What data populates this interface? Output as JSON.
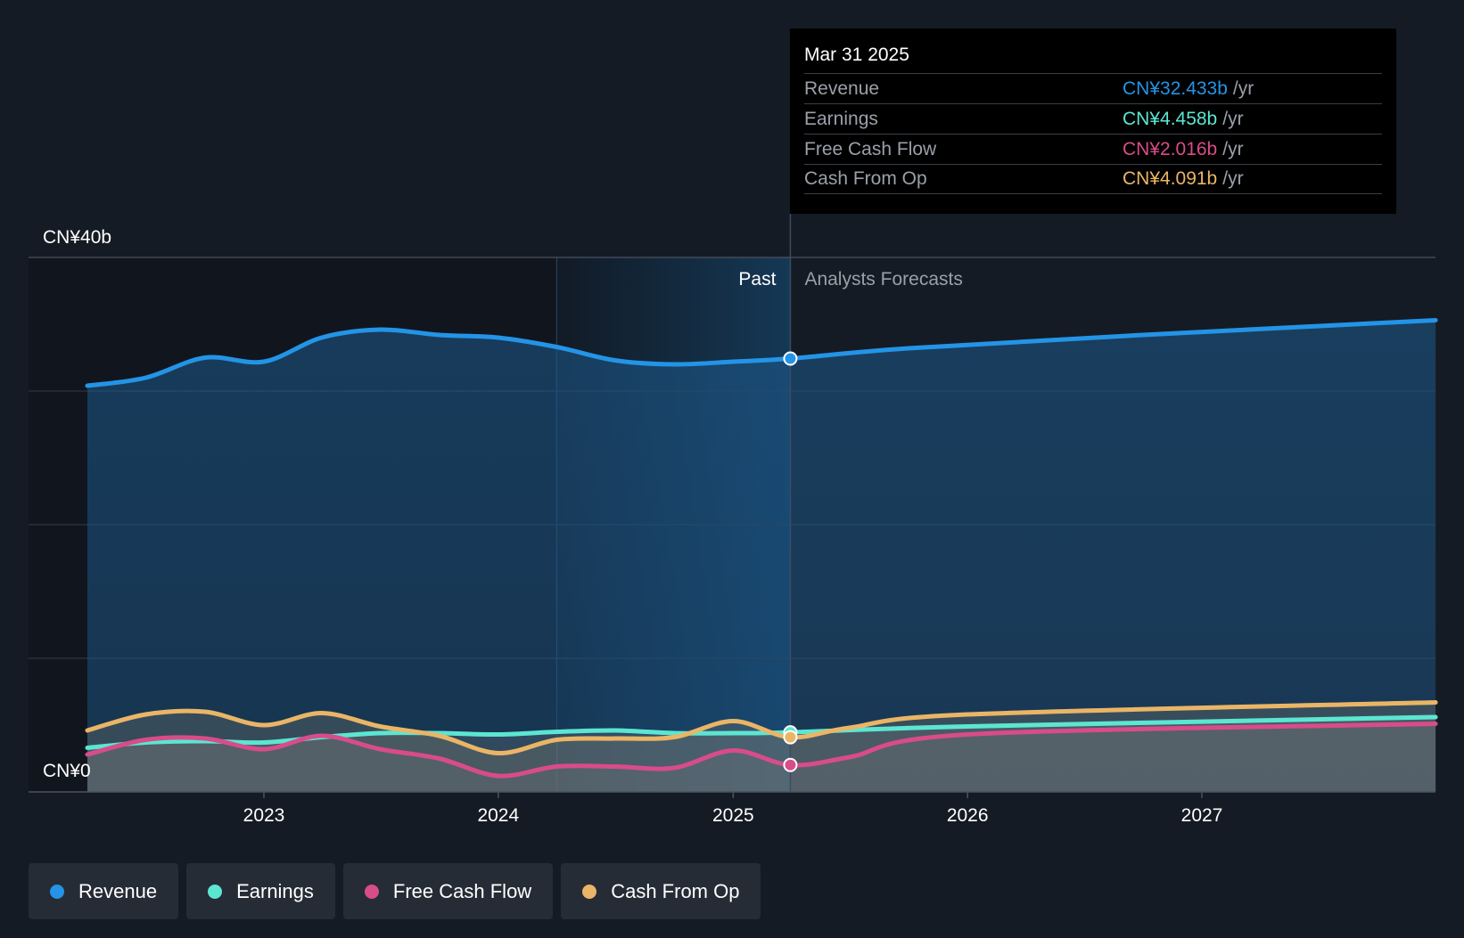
{
  "chart_data": {
    "type": "area",
    "x_domain": [
      "2022-04-01",
      "2027-12-31"
    ],
    "ylim": [
      0,
      40
    ],
    "y_unit": "CN¥ billions",
    "y_tick_labels": [
      {
        "value": 40,
        "label": "CN¥40b"
      },
      {
        "value": 0,
        "label": "CN¥0"
      }
    ],
    "x_tick_labels": [
      {
        "date": "2023-01-01",
        "label": "2023"
      },
      {
        "date": "2024-01-01",
        "label": "2024"
      },
      {
        "date": "2025-01-01",
        "label": "2025"
      },
      {
        "date": "2026-01-01",
        "label": "2026"
      },
      {
        "date": "2027-01-01",
        "label": "2027"
      }
    ],
    "gridlines_y": [
      10,
      20,
      30,
      40
    ],
    "highlight_band": [
      "2024-04-01",
      "2025-03-31"
    ],
    "past_forecast_split": "2025-03-31",
    "past_label": "Past",
    "forecast_label": "Analysts Forecasts",
    "series": [
      {
        "name": "Revenue",
        "color": "#2394e6",
        "fill": true,
        "points": [
          [
            "2022-04-01",
            30.4
          ],
          [
            "2022-07-01",
            31.0
          ],
          [
            "2022-10-01",
            32.5
          ],
          [
            "2023-01-01",
            32.2
          ],
          [
            "2023-04-01",
            34.0
          ],
          [
            "2023-07-01",
            34.6
          ],
          [
            "2023-10-01",
            34.2
          ],
          [
            "2024-01-01",
            34.0
          ],
          [
            "2024-04-01",
            33.3
          ],
          [
            "2024-07-01",
            32.3
          ],
          [
            "2024-10-01",
            32.0
          ],
          [
            "2025-01-01",
            32.2
          ],
          [
            "2025-03-31",
            32.433
          ],
          [
            "2025-10-01",
            33.2
          ],
          [
            "2026-10-01",
            34.2
          ],
          [
            "2027-12-31",
            35.3
          ]
        ]
      },
      {
        "name": "Earnings",
        "color": "#5ce6d2",
        "fill": true,
        "points": [
          [
            "2022-04-01",
            3.3
          ],
          [
            "2022-07-01",
            3.7
          ],
          [
            "2022-10-01",
            3.8
          ],
          [
            "2023-01-01",
            3.7
          ],
          [
            "2023-04-01",
            4.1
          ],
          [
            "2023-07-01",
            4.4
          ],
          [
            "2023-10-01",
            4.4
          ],
          [
            "2024-01-01",
            4.3
          ],
          [
            "2024-04-01",
            4.5
          ],
          [
            "2024-07-01",
            4.6
          ],
          [
            "2024-10-01",
            4.4
          ],
          [
            "2025-01-01",
            4.4
          ],
          [
            "2025-03-31",
            4.458
          ],
          [
            "2026-01-01",
            4.9
          ],
          [
            "2027-12-31",
            5.6
          ]
        ]
      },
      {
        "name": "Free Cash Flow",
        "color": "#d84c8a",
        "fill": true,
        "points": [
          [
            "2022-04-01",
            2.8
          ],
          [
            "2022-07-01",
            3.9
          ],
          [
            "2022-10-01",
            4.0
          ],
          [
            "2023-01-01",
            3.2
          ],
          [
            "2023-04-01",
            4.2
          ],
          [
            "2023-07-01",
            3.2
          ],
          [
            "2023-10-01",
            2.5
          ],
          [
            "2024-01-01",
            1.2
          ],
          [
            "2024-04-01",
            1.9
          ],
          [
            "2024-07-01",
            1.9
          ],
          [
            "2024-10-01",
            1.8
          ],
          [
            "2025-01-01",
            3.1
          ],
          [
            "2025-03-31",
            2.016
          ],
          [
            "2025-07-01",
            2.6
          ],
          [
            "2026-01-01",
            4.3
          ],
          [
            "2027-12-31",
            5.1
          ]
        ]
      },
      {
        "name": "Cash From Op",
        "color": "#eab566",
        "fill": true,
        "points": [
          [
            "2022-04-01",
            4.6
          ],
          [
            "2022-07-01",
            5.8
          ],
          [
            "2022-10-01",
            6.0
          ],
          [
            "2023-01-01",
            5.0
          ],
          [
            "2023-04-01",
            5.9
          ],
          [
            "2023-07-01",
            4.9
          ],
          [
            "2023-10-01",
            4.2
          ],
          [
            "2024-01-01",
            2.9
          ],
          [
            "2024-04-01",
            3.9
          ],
          [
            "2024-07-01",
            4.0
          ],
          [
            "2024-10-01",
            4.1
          ],
          [
            "2025-01-01",
            5.3
          ],
          [
            "2025-03-31",
            4.091
          ],
          [
            "2025-07-01",
            4.8
          ],
          [
            "2026-01-01",
            5.8
          ],
          [
            "2027-12-31",
            6.7
          ]
        ]
      }
    ]
  },
  "tooltip": {
    "date": "Mar 31 2025",
    "unit": "/yr",
    "rows": [
      {
        "label": "Revenue",
        "value": "CN¥32.433b",
        "color": "#2394e6"
      },
      {
        "label": "Earnings",
        "value": "CN¥4.458b",
        "color": "#5ce6d2"
      },
      {
        "label": "Free Cash Flow",
        "value": "CN¥2.016b",
        "color": "#d84c8a"
      },
      {
        "label": "Cash From Op",
        "value": "CN¥4.091b",
        "color": "#eab566"
      }
    ]
  },
  "legend": [
    {
      "label": "Revenue",
      "color": "#2394e6"
    },
    {
      "label": "Earnings",
      "color": "#5ce6d2"
    },
    {
      "label": "Free Cash Flow",
      "color": "#d84c8a"
    },
    {
      "label": "Cash From Op",
      "color": "#eab566"
    }
  ]
}
